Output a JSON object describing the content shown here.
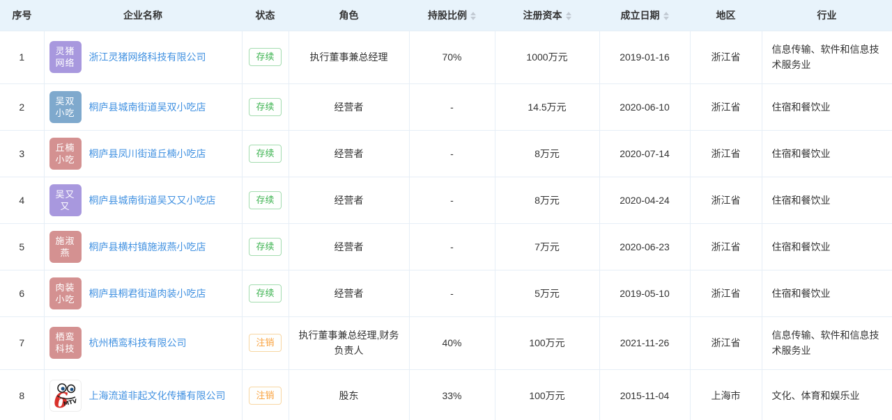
{
  "table": {
    "columns": [
      {
        "key": "index",
        "label": "序号",
        "sortable": false
      },
      {
        "key": "name",
        "label": "企业名称",
        "sortable": false
      },
      {
        "key": "status",
        "label": "状态",
        "sortable": false
      },
      {
        "key": "role",
        "label": "角色",
        "sortable": false
      },
      {
        "key": "share",
        "label": "持股比例",
        "sortable": true
      },
      {
        "key": "capital",
        "label": "注册资本",
        "sortable": true
      },
      {
        "key": "date",
        "label": "成立日期",
        "sortable": true
      },
      {
        "key": "region",
        "label": "地区",
        "sortable": false
      },
      {
        "key": "industry",
        "label": "行业",
        "sortable": false
      }
    ],
    "status_styles": {
      "存续": {
        "class": "badge-active",
        "text_color": "#3db351",
        "border_color": "#a3dcaf"
      },
      "注销": {
        "class": "badge-revoked",
        "text_color": "#f9a23d",
        "border_color": "#f8d6a2"
      }
    },
    "avatar_palette": {
      "purple": "#a898de",
      "blue": "#7fa9cd",
      "pink": "#d49191"
    },
    "rows": [
      {
        "index": "1",
        "avatar": {
          "kind": "initials",
          "lines": [
            "灵猪",
            "网络"
          ],
          "bg": "#a898de"
        },
        "name": "浙江灵猪网络科技有限公司",
        "status": "存续",
        "role": "执行董事兼总经理",
        "share": "70%",
        "capital": "1000万元",
        "date": "2019-01-16",
        "region": "浙江省",
        "industry": "信息传输、软件和信息技术服务业",
        "tall": true
      },
      {
        "index": "2",
        "avatar": {
          "kind": "initials",
          "lines": [
            "吴双",
            "小吃"
          ],
          "bg": "#7fa9cd"
        },
        "name": "桐庐县城南街道吴双小吃店",
        "status": "存续",
        "role": "经营者",
        "share": "-",
        "capital": "14.5万元",
        "date": "2020-06-10",
        "region": "浙江省",
        "industry": "住宿和餐饮业",
        "tall": false
      },
      {
        "index": "3",
        "avatar": {
          "kind": "initials",
          "lines": [
            "丘楠",
            "小吃"
          ],
          "bg": "#d49191"
        },
        "name": "桐庐县凤川街道丘楠小吃店",
        "status": "存续",
        "role": "经营者",
        "share": "-",
        "capital": "8万元",
        "date": "2020-07-14",
        "region": "浙江省",
        "industry": "住宿和餐饮业",
        "tall": false
      },
      {
        "index": "4",
        "avatar": {
          "kind": "initials",
          "lines": [
            "吴又",
            "又"
          ],
          "bg": "#a898de"
        },
        "name": "桐庐县城南街道吴又又小吃店",
        "status": "存续",
        "role": "经营者",
        "share": "-",
        "capital": "8万元",
        "date": "2020-04-24",
        "region": "浙江省",
        "industry": "住宿和餐饮业",
        "tall": false
      },
      {
        "index": "5",
        "avatar": {
          "kind": "initials",
          "lines": [
            "施淑",
            "燕"
          ],
          "bg": "#d49191"
        },
        "name": "桐庐县横村镇施淑燕小吃店",
        "status": "存续",
        "role": "经营者",
        "share": "-",
        "capital": "7万元",
        "date": "2020-06-23",
        "region": "浙江省",
        "industry": "住宿和餐饮业",
        "tall": false
      },
      {
        "index": "6",
        "avatar": {
          "kind": "initials",
          "lines": [
            "肉装",
            "小吃"
          ],
          "bg": "#d49191"
        },
        "name": "桐庐县桐君街道肉装小吃店",
        "status": "存续",
        "role": "经营者",
        "share": "-",
        "capital": "5万元",
        "date": "2019-05-10",
        "region": "浙江省",
        "industry": "住宿和餐饮业",
        "tall": false
      },
      {
        "index": "7",
        "avatar": {
          "kind": "initials",
          "lines": [
            "栖鸾",
            "科技"
          ],
          "bg": "#d49191"
        },
        "name": "杭州栖鸾科技有限公司",
        "status": "注销",
        "role": "执行董事兼总经理,财务负责人",
        "share": "40%",
        "capital": "100万元",
        "date": "2021-11-26",
        "region": "浙江省",
        "industry": "信息传输、软件和信息技术服务业",
        "tall": true
      },
      {
        "index": "8",
        "avatar": {
          "kind": "logo",
          "logo_main": "6",
          "logo_sub": "MTV"
        },
        "name": "上海流道非起文化传播有限公司",
        "status": "注销",
        "role": "股东",
        "share": "33%",
        "capital": "100万元",
        "date": "2015-11-04",
        "region": "上海市",
        "industry": "文化、体育和娱乐业",
        "tall": true
      }
    ]
  }
}
